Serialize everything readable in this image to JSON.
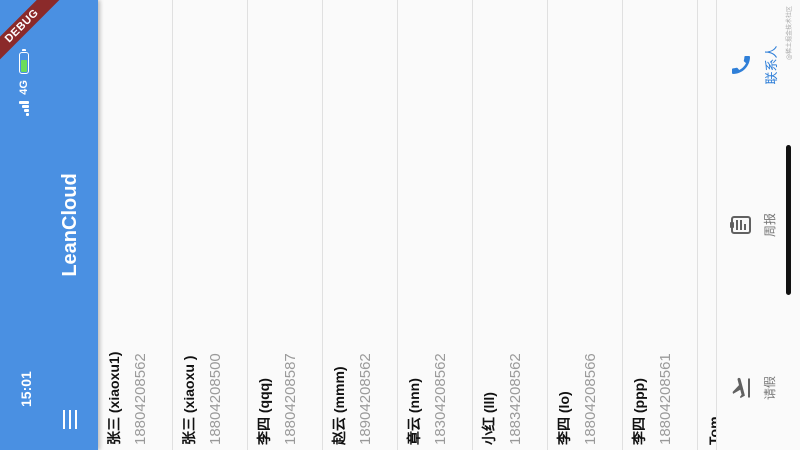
{
  "status_bar": {
    "time": "15:01",
    "network": "4G",
    "debug_label": "DEBUG"
  },
  "app_bar": {
    "title": "LeanCloud"
  },
  "contacts": [
    {
      "name": "张三 (xiaoxu1)",
      "phone": "18804208562"
    },
    {
      "name": "张三 (xiaoxu )",
      "phone": "18804208500"
    },
    {
      "name": "李四 (qqq)",
      "phone": "18804208587"
    },
    {
      "name": "赵云 (mmm)",
      "phone": "18904208562"
    },
    {
      "name": "章云 (nnn)",
      "phone": "18304208562"
    },
    {
      "name": "小红 (lll)",
      "phone": "18834208562"
    },
    {
      "name": "李四 (lo)",
      "phone": "18804208566"
    },
    {
      "name": "李四 (ppp)",
      "phone": "18804208561"
    },
    {
      "name": "Tom",
      "phone": ""
    }
  ],
  "bottom_nav": {
    "items": [
      {
        "label": "请假",
        "icon": "flight-takeoff-icon"
      },
      {
        "label": "周报",
        "icon": "weekly-report-icon"
      },
      {
        "label": "联系人",
        "icon": "phone-icon",
        "active": true
      }
    ],
    "active_color": "#2f7fd8"
  },
  "watermark": "@稀土掘金技术社区",
  "colors": {
    "app_bar": "#4a90e2",
    "accent": "#2f7fd8"
  }
}
